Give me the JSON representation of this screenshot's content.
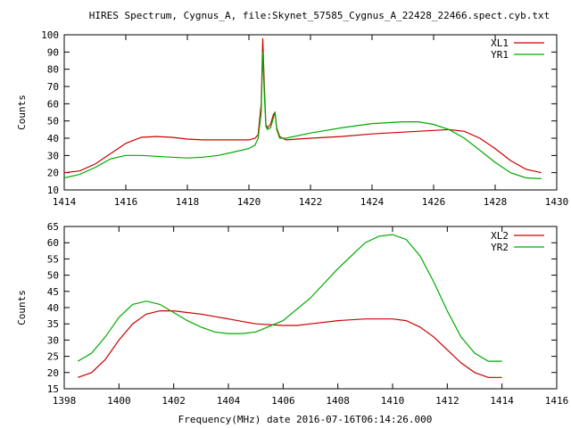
{
  "page": {
    "title": "HIRES Spectrum, Cygnus_A, file:Skynet_57585_Cygnus_A_22428_22466.spect.cyb.txt",
    "xlabel": "Frequency(MHz) date 2016-07-16T06:14:26.000"
  },
  "chart_data": [
    {
      "type": "line",
      "title": "HIRES Spectrum, Cygnus_A, file:Skynet_57585_Cygnus_A_22428_22466.spect.cyb.txt",
      "xlabel": "",
      "ylabel": "Counts",
      "xlim": [
        1414,
        1430
      ],
      "ylim": [
        10,
        100
      ],
      "xticks": [
        1414,
        1416,
        1418,
        1420,
        1422,
        1424,
        1426,
        1428,
        1430
      ],
      "yticks": [
        10,
        20,
        30,
        40,
        50,
        60,
        70,
        80,
        90,
        100
      ],
      "grid": false,
      "legend": "top-right",
      "series": [
        {
          "name": "XL1",
          "color": "#cc0000",
          "x": [
            1414.0,
            1414.5,
            1415.0,
            1415.5,
            1416.0,
            1416.5,
            1417.0,
            1417.5,
            1418.0,
            1418.5,
            1419.0,
            1419.5,
            1420.0,
            1420.2,
            1420.3,
            1420.4,
            1420.45,
            1420.5,
            1420.55,
            1420.6,
            1420.7,
            1420.8,
            1420.85,
            1420.9,
            1421.0,
            1421.2,
            1422.0,
            1423.0,
            1424.0,
            1425.0,
            1426.0,
            1426.5,
            1427.0,
            1427.5,
            1428.0,
            1428.5,
            1429.0,
            1429.5
          ],
          "y": [
            20,
            21,
            25,
            31,
            37,
            40.5,
            41,
            40.5,
            39.5,
            39,
            39,
            39,
            39,
            40,
            42,
            60,
            98,
            70,
            48,
            46,
            48,
            54,
            55,
            46,
            41,
            39,
            40,
            41,
            42.5,
            43.5,
            44.5,
            45,
            44,
            40,
            34,
            27,
            22,
            20
          ]
        },
        {
          "name": "YR1",
          "color": "#00aa00",
          "x": [
            1414.0,
            1414.5,
            1415.0,
            1415.5,
            1416.0,
            1416.5,
            1417.0,
            1417.5,
            1418.0,
            1418.5,
            1419.0,
            1419.5,
            1420.0,
            1420.2,
            1420.3,
            1420.4,
            1420.45,
            1420.5,
            1420.55,
            1420.6,
            1420.7,
            1420.8,
            1420.85,
            1420.9,
            1421.0,
            1421.2,
            1422.0,
            1423.0,
            1424.0,
            1425.0,
            1425.5,
            1426.0,
            1426.5,
            1427.0,
            1427.5,
            1428.0,
            1428.5,
            1429.0,
            1429.5
          ],
          "y": [
            17,
            19,
            23,
            28,
            30,
            30,
            29.5,
            29,
            28.5,
            29,
            30,
            32,
            34,
            36,
            40,
            55,
            90,
            65,
            47,
            45,
            46,
            52,
            55,
            45,
            40,
            40,
            43,
            46,
            48.5,
            49.5,
            49.5,
            48,
            45,
            40,
            33,
            26,
            20,
            17,
            16.5
          ]
        }
      ]
    },
    {
      "type": "line",
      "title": "",
      "xlabel": "Frequency(MHz) date 2016-07-16T06:14:26.000",
      "ylabel": "Counts",
      "xlim": [
        1398,
        1416
      ],
      "ylim": [
        15,
        65
      ],
      "xticks": [
        1398,
        1400,
        1402,
        1404,
        1406,
        1408,
        1410,
        1412,
        1414,
        1416
      ],
      "yticks": [
        15,
        20,
        25,
        30,
        35,
        40,
        45,
        50,
        55,
        60,
        65
      ],
      "grid": false,
      "legend": "top-right",
      "series": [
        {
          "name": "XL2",
          "color": "#cc0000",
          "x": [
            1398.5,
            1399.0,
            1399.5,
            1400.0,
            1400.5,
            1401.0,
            1401.5,
            1402.0,
            1402.5,
            1403.0,
            1404.0,
            1405.0,
            1406.0,
            1406.5,
            1407.0,
            1408.0,
            1409.0,
            1409.5,
            1410.0,
            1410.5,
            1411.0,
            1411.5,
            1412.0,
            1412.5,
            1413.0,
            1413.5,
            1414.0
          ],
          "y": [
            18.5,
            20,
            24,
            30,
            35,
            38,
            39,
            39,
            38.5,
            38,
            36.5,
            35,
            34.5,
            34.5,
            35,
            36,
            36.5,
            36.5,
            36.5,
            36,
            34,
            31,
            27,
            23,
            20,
            18.5,
            18.5
          ]
        },
        {
          "name": "YR2",
          "color": "#00aa00",
          "x": [
            1398.5,
            1399.0,
            1399.5,
            1400.0,
            1400.5,
            1401.0,
            1401.5,
            1402.0,
            1402.5,
            1403.0,
            1403.5,
            1404.0,
            1404.5,
            1405.0,
            1406.0,
            1407.0,
            1408.0,
            1409.0,
            1409.5,
            1410.0,
            1410.5,
            1411.0,
            1411.5,
            1412.0,
            1412.5,
            1413.0,
            1413.5,
            1414.0
          ],
          "y": [
            23.5,
            26,
            31,
            37,
            41,
            42,
            41,
            38.5,
            36,
            34,
            32.5,
            32,
            32,
            32.5,
            36,
            43,
            52,
            60,
            62,
            62.5,
            61,
            56,
            48,
            39,
            31,
            26,
            23.5,
            23.5
          ]
        }
      ]
    }
  ]
}
